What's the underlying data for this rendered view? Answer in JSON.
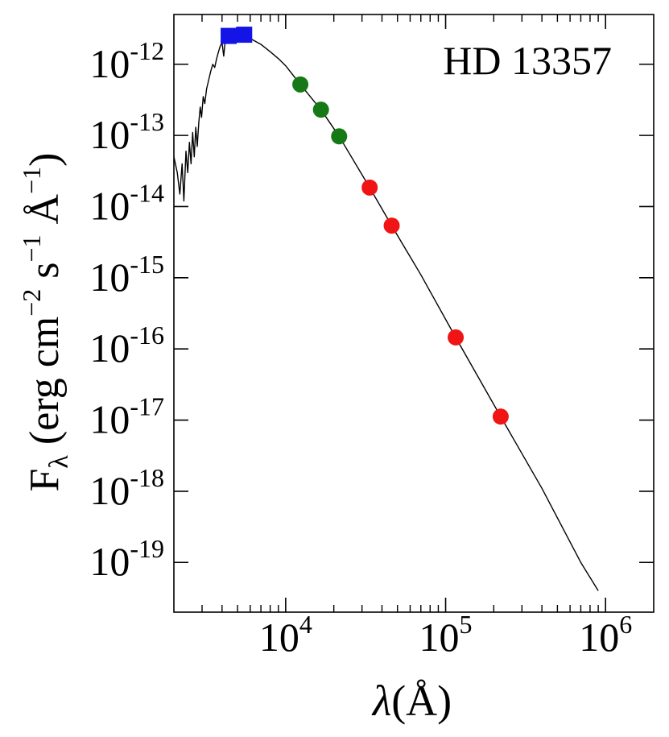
{
  "chart_data": {
    "type": "scatter",
    "title": "HD 13357",
    "xlabel_symbol": "λ",
    "xlabel_unit": "(Å)",
    "ylabel": {
      "prefix": "F",
      "sub": "λ",
      "open": " (erg cm",
      "exp1": "−2",
      "mid": " s",
      "exp2": "−1",
      "unit": " Å",
      "exp3": "−1",
      "close": ")"
    },
    "x_scale": "log",
    "y_scale": "log",
    "xlim": [
      2000,
      2000000
    ],
    "ylim": [
      2e-20,
      5e-12
    ],
    "x_ticks": [
      {
        "value": 10000,
        "base": "10",
        "exp": "4"
      },
      {
        "value": 100000,
        "base": "10",
        "exp": "5"
      },
      {
        "value": 1000000,
        "base": "10",
        "exp": "6"
      }
    ],
    "y_ticks": [
      {
        "value": 1e-12,
        "base": "10",
        "exp": "-12"
      },
      {
        "value": 1e-13,
        "base": "10",
        "exp": "-13"
      },
      {
        "value": 1e-14,
        "base": "10",
        "exp": "-14"
      },
      {
        "value": 1e-15,
        "base": "10",
        "exp": "-15"
      },
      {
        "value": 1e-16,
        "base": "10",
        "exp": "-16"
      },
      {
        "value": 1e-17,
        "base": "10",
        "exp": "-17"
      },
      {
        "value": 1e-18,
        "base": "10",
        "exp": "-18"
      },
      {
        "value": 1e-19,
        "base": "10",
        "exp": "-19"
      }
    ],
    "grid": false,
    "series": [
      {
        "marker": "square",
        "color": "#1414e6",
        "points": [
          {
            "x": 4400,
            "y": 2.5e-12
          },
          {
            "x": 5500,
            "y": 2.6e-12
          }
        ]
      },
      {
        "marker": "circle",
        "color": "#157a15",
        "points": [
          {
            "x": 12350,
            "y": 5.2e-13
          },
          {
            "x": 16620,
            "y": 2.3e-13
          },
          {
            "x": 21590,
            "y": 9.7e-14
          }
        ]
      },
      {
        "marker": "circle",
        "color": "#f01414",
        "points": [
          {
            "x": 33500,
            "y": 1.85e-14
          },
          {
            "x": 46000,
            "y": 5.4e-15
          },
          {
            "x": 115600,
            "y": 1.45e-16
          },
          {
            "x": 220900,
            "y": 1.12e-17
          }
        ]
      }
    ],
    "model_curve": {
      "color": "#000000",
      "points": [
        [
          2000,
          5e-14
        ],
        [
          2100,
          3e-14
        ],
        [
          2180,
          1.5e-14
        ],
        [
          2250,
          4e-14
        ],
        [
          2310,
          1.2e-14
        ],
        [
          2380,
          6e-14
        ],
        [
          2440,
          3e-14
        ],
        [
          2500,
          8e-14
        ],
        [
          2560,
          4e-14
        ],
        [
          2620,
          1.1e-13
        ],
        [
          2680,
          5e-14
        ],
        [
          2740,
          1.3e-13
        ],
        [
          2800,
          7e-14
        ],
        [
          2860,
          1.5e-13
        ],
        [
          2920,
          2.5e-13
        ],
        [
          2980,
          1.8e-13
        ],
        [
          3050,
          3.5e-13
        ],
        [
          3120,
          2.8e-13
        ],
        [
          3200,
          4.5e-13
        ],
        [
          3300,
          6e-13
        ],
        [
          3400,
          8e-13
        ],
        [
          3500,
          1e-12
        ],
        [
          3600,
          9e-13
        ],
        [
          3700,
          1.2e-12
        ],
        [
          3800,
          1.5e-12
        ],
        [
          3900,
          1.8e-12
        ],
        [
          4000,
          2e-12
        ],
        [
          4100,
          1.3e-12
        ],
        [
          4200,
          2.3e-12
        ],
        [
          4300,
          2.4e-12
        ],
        [
          4500,
          2.5e-12
        ],
        [
          4800,
          2.6e-12
        ],
        [
          5200,
          2.6e-12
        ],
        [
          5600,
          2.5e-12
        ],
        [
          6000,
          2.3e-12
        ],
        [
          7000,
          1.9e-12
        ],
        [
          8000,
          1.5e-12
        ],
        [
          9000,
          1.2e-12
        ],
        [
          10000,
          9.5e-13
        ],
        [
          12350,
          5.2e-13
        ],
        [
          16620,
          2.3e-13
        ],
        [
          21590,
          9.7e-14
        ],
        [
          33500,
          1.85e-14
        ],
        [
          46000,
          5.4e-15
        ],
        [
          70000,
          1.1e-15
        ],
        [
          115600,
          1.45e-16
        ],
        [
          220900,
          1.12e-17
        ],
        [
          400000,
          1.1e-18
        ],
        [
          700000,
          1e-19
        ],
        [
          900000,
          4e-20
        ]
      ]
    }
  }
}
